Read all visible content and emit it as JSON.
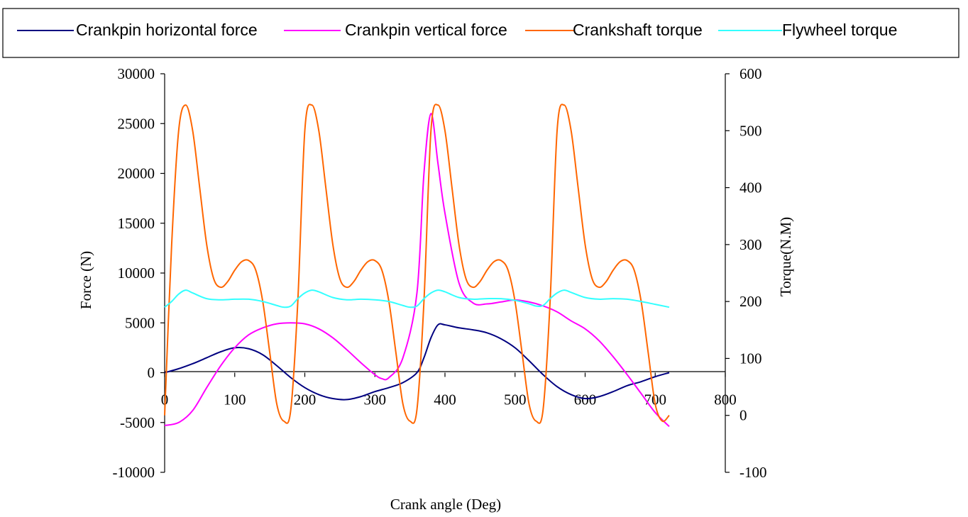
{
  "chart_data": {
    "type": "line",
    "xlabel": "Crank angle (Deg)",
    "ylabel": "Force (N)",
    "y2label": "Torque(N.M)",
    "xlim": [
      0,
      800
    ],
    "ylim": [
      -10000,
      30000
    ],
    "y2lim": [
      -100,
      600
    ],
    "x_ticks": [
      0,
      100,
      200,
      300,
      400,
      500,
      600,
      700,
      800
    ],
    "y_ticks": [
      -10000,
      -5000,
      0,
      5000,
      10000,
      15000,
      20000,
      25000,
      30000
    ],
    "y2_ticks": [
      -100,
      0,
      100,
      200,
      300,
      400,
      500,
      600
    ],
    "legend_position": "top",
    "grid": false,
    "series": [
      {
        "name": "Crankpin horizontal force",
        "axis": "left",
        "color": "#000080",
        "x": [
          0,
          20,
          40,
          60,
          80,
          100,
          120,
          140,
          160,
          180,
          200,
          220,
          240,
          260,
          280,
          300,
          320,
          340,
          360,
          370,
          380,
          390,
          400,
          420,
          440,
          460,
          480,
          500,
          520,
          540,
          560,
          580,
          600,
          620,
          640,
          660,
          680,
          700,
          720
        ],
        "values": [
          0,
          400,
          900,
          1500,
          2100,
          2500,
          2400,
          1800,
          700,
          -500,
          -1500,
          -2200,
          -2600,
          -2700,
          -2400,
          -1900,
          -1500,
          -1000,
          0,
          1500,
          3500,
          4800,
          4800,
          4500,
          4300,
          4000,
          3400,
          2500,
          1200,
          -200,
          -1400,
          -2200,
          -2600,
          -2400,
          -1900,
          -1300,
          -900,
          -400,
          0
        ]
      },
      {
        "name": "Crankpin vertical force",
        "axis": "left",
        "color": "#ff00ff",
        "x": [
          0,
          20,
          40,
          60,
          80,
          100,
          120,
          140,
          160,
          180,
          200,
          220,
          240,
          260,
          280,
          300,
          310,
          320,
          340,
          360,
          370,
          380,
          390,
          400,
          420,
          440,
          460,
          480,
          500,
          520,
          540,
          560,
          580,
          600,
          620,
          640,
          660,
          680,
          700,
          720
        ],
        "values": [
          -5300,
          -5000,
          -3800,
          -1500,
          700,
          2500,
          3800,
          4500,
          4900,
          5000,
          4900,
          4400,
          3500,
          2300,
          1000,
          -200,
          -600,
          -500,
          1500,
          8000,
          20000,
          26000,
          21000,
          16000,
          9000,
          7000,
          6900,
          7100,
          7300,
          7100,
          6700,
          6100,
          5200,
          4400,
          3200,
          1600,
          -200,
          -2100,
          -4000,
          -5400
        ]
      },
      {
        "name": "Crankshaft torque",
        "axis": "right",
        "color": "#ff6600",
        "x": [
          0,
          10,
          20,
          30,
          40,
          50,
          60,
          70,
          80,
          90,
          100,
          110,
          120,
          130,
          140,
          150,
          160,
          170,
          180,
          190,
          200,
          210,
          220,
          230,
          240,
          250,
          260,
          270,
          280,
          290,
          300,
          310,
          320,
          330,
          340,
          350,
          360,
          370,
          380,
          390,
          400,
          410,
          420,
          430,
          440,
          450,
          460,
          470,
          480,
          490,
          500,
          510,
          520,
          530,
          540,
          550,
          560,
          570,
          580,
          590,
          600,
          610,
          620,
          630,
          640,
          650,
          660,
          670,
          680,
          690,
          700,
          710,
          720
        ],
        "values": [
          0,
          300,
          500,
          545,
          500,
          400,
          300,
          240,
          225,
          235,
          255,
          270,
          272,
          255,
          200,
          110,
          20,
          -10,
          10,
          200,
          500,
          545,
          500,
          400,
          300,
          240,
          225,
          235,
          255,
          270,
          272,
          255,
          200,
          110,
          20,
          -10,
          10,
          200,
          500,
          545,
          500,
          400,
          300,
          240,
          225,
          235,
          255,
          270,
          272,
          255,
          200,
          110,
          20,
          -10,
          10,
          200,
          500,
          545,
          500,
          400,
          300,
          240,
          225,
          235,
          255,
          270,
          272,
          255,
          200,
          110,
          20,
          -10,
          0
        ]
      },
      {
        "name": "Flywheel torque",
        "axis": "right",
        "color": "#33ffff",
        "x": [
          0,
          10,
          20,
          30,
          40,
          60,
          80,
          100,
          120,
          140,
          160,
          170,
          180,
          190,
          200,
          210,
          220,
          240,
          260,
          280,
          300,
          320,
          340,
          350,
          360,
          370,
          380,
          390,
          400,
          420,
          440,
          460,
          480,
          500,
          520,
          530,
          540,
          550,
          560,
          570,
          580,
          600,
          620,
          640,
          660,
          680,
          700,
          720
        ],
        "values": [
          190,
          200,
          213,
          220,
          215,
          205,
          203,
          204,
          204,
          200,
          193,
          190,
          192,
          205,
          215,
          220,
          217,
          207,
          203,
          204,
          203,
          200,
          193,
          190,
          192,
          205,
          215,
          220,
          217,
          207,
          204,
          205,
          205,
          202,
          196,
          192,
          193,
          205,
          215,
          220,
          216,
          207,
          204,
          205,
          204,
          200,
          195,
          190
        ]
      }
    ]
  }
}
